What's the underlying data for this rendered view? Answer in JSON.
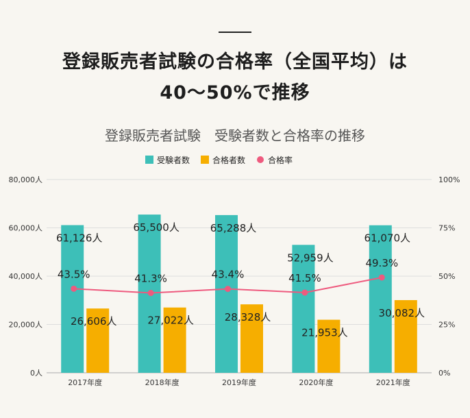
{
  "page": {
    "headline_line1": "登録販売者試験の合格率（全国平均）は",
    "headline_line2": "40～50%で推移"
  },
  "colors": {
    "examinees": "#3dbfb8",
    "passers": "#f6ae00",
    "rate": "#ee5a7e",
    "grid": "#dddddd",
    "text": "#333333"
  },
  "chart_data": {
    "type": "bar",
    "title": "登録販売者試験　受験者数と合格率の推移",
    "categories": [
      "2017年度",
      "2018年度",
      "2019年度",
      "2020年度",
      "2021年度"
    ],
    "series": [
      {
        "name": "受験者数",
        "type": "bar",
        "axis": "left",
        "values": [
          61126,
          65500,
          65288,
          52959,
          61070
        ],
        "labels": [
          "61,126人",
          "65,500人",
          "65,288人",
          "52,959人",
          "61,070人"
        ]
      },
      {
        "name": "合格者数",
        "type": "bar",
        "axis": "left",
        "values": [
          26606,
          27022,
          28328,
          21953,
          30082
        ],
        "labels": [
          "26,606人",
          "27,022人",
          "28,328人",
          "21,953人",
          "30,082人"
        ]
      },
      {
        "name": "合格率",
        "type": "line",
        "axis": "right",
        "values": [
          43.5,
          41.3,
          43.4,
          41.5,
          49.3
        ],
        "labels": [
          "43.5%",
          "41.3%",
          "43.4%",
          "41.5%",
          "49.3%"
        ]
      }
    ],
    "y_left": {
      "ylim": [
        0,
        80000
      ],
      "ticks": [
        "0人",
        "20,000人",
        "40,000人",
        "60,000人",
        "80,000人"
      ]
    },
    "y_right": {
      "ylim": [
        0,
        100
      ],
      "ticks": [
        "0%",
        "25%",
        "50%",
        "75%",
        "100%"
      ]
    },
    "legend_position": "top-center",
    "grid": true
  }
}
